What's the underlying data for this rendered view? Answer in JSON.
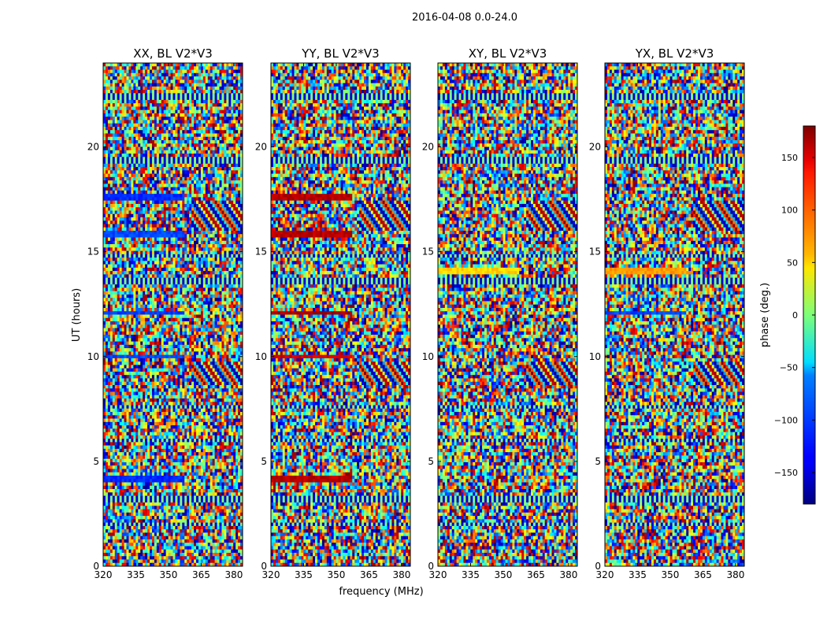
{
  "chart_data": {
    "type": "heatmap",
    "suptitle": "2016-04-08 0.0-24.0",
    "xlabel": "frequency (MHz)",
    "ylabel": "UT (hours)",
    "xlim": [
      320,
      384
    ],
    "ylim": [
      0,
      24
    ],
    "xticks": [
      320,
      335,
      350,
      365,
      380
    ],
    "yticks": [
      0,
      5,
      10,
      15,
      20
    ],
    "panels": [
      {
        "title": "XX, BL V2*V3",
        "pol": "XX"
      },
      {
        "title": "YY, BL V2*V3",
        "pol": "YY"
      },
      {
        "title": "XY, BL V2*V3",
        "pol": "XY"
      },
      {
        "title": "YX, BL V2*V3",
        "pol": "YX"
      }
    ],
    "colorbar": {
      "label": "phase (deg.)",
      "colormap": "jet",
      "vmin": -180,
      "vmax": 180,
      "ticks": [
        -150,
        -100,
        -50,
        0,
        50,
        100,
        150
      ],
      "tick_labels": [
        "−150",
        "−100",
        "−50",
        "0",
        "50",
        "100",
        "150"
      ]
    },
    "blank_bands_ut": [
      2.0,
      3.2,
      6.0,
      7.6,
      13.6,
      14.8,
      19.4,
      22.4
    ],
    "strong_bands": {
      "XX": [
        {
          "ut": 19.4,
          "phase": -175
        },
        {
          "ut": 17.6,
          "phase": -120
        },
        {
          "ut": 15.8,
          "phase": -110
        },
        {
          "ut": 12.1,
          "phase": -115
        },
        {
          "ut": 10.0,
          "phase": -110
        },
        {
          "ut": 4.2,
          "phase": -120
        }
      ],
      "YY": [
        {
          "ut": 19.4,
          "phase": 140
        },
        {
          "ut": 17.6,
          "phase": 160
        },
        {
          "ut": 15.8,
          "phase": 160
        },
        {
          "ut": 12.1,
          "phase": 165
        },
        {
          "ut": 10.0,
          "phase": 150
        },
        {
          "ut": 4.2,
          "phase": 160
        }
      ],
      "XY": [
        {
          "ut": 19.4,
          "phase": -30
        },
        {
          "ut": 14.1,
          "phase": 60
        }
      ],
      "YX": [
        {
          "ut": 19.4,
          "phase": -160
        },
        {
          "ut": 14.1,
          "phase": 80
        },
        {
          "ut": 12.1,
          "phase": -110
        }
      ]
    }
  }
}
